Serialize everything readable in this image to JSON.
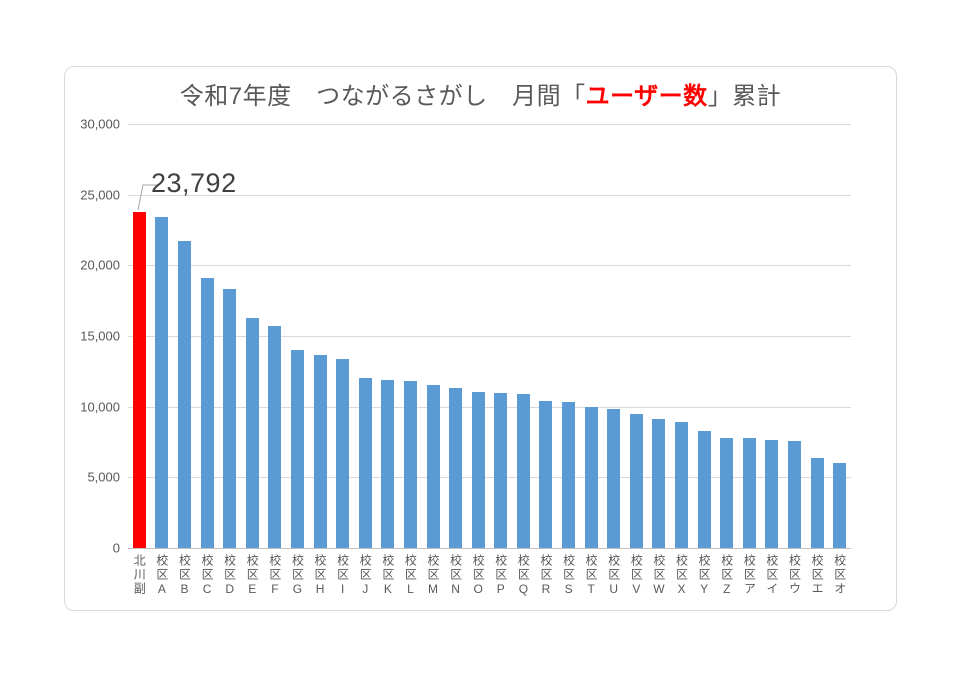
{
  "chart_data": {
    "type": "bar",
    "title_full": "令和7年度　つながるさがし　月間「ユーザー数」累計",
    "title_parts": {
      "prefix": "令和7年度　つながるさがし　月間「",
      "highlight": "ユーザー数",
      "suffix": "」累計"
    },
    "categories": [
      "北川副",
      "校区A",
      "校区B",
      "校区C",
      "校区D",
      "校区E",
      "校区F",
      "校区G",
      "校区H",
      "校区I",
      "校区J",
      "校区K",
      "校区L",
      "校区M",
      "校区N",
      "校区O",
      "校区P",
      "校区Q",
      "校区R",
      "校区S",
      "校区T",
      "校区U",
      "校区V",
      "校区W",
      "校区X",
      "校区Y",
      "校区Z",
      "校区ア",
      "校区イ",
      "校区ウ",
      "校区エ",
      "校区オ"
    ],
    "values": [
      23792,
      23400,
      21700,
      19100,
      18300,
      16300,
      15700,
      14000,
      13650,
      13350,
      12000,
      11900,
      11850,
      11550,
      11350,
      11050,
      11000,
      10900,
      10400,
      10300,
      10000,
      9850,
      9500,
      9100,
      8900,
      8300,
      7800,
      7750,
      7650,
      7600,
      6400,
      6000
    ],
    "highlight_index": 0,
    "data_label": "23,792",
    "ylim": [
      0,
      30000
    ],
    "ytick_values": [
      0,
      5000,
      10000,
      15000,
      20000,
      25000,
      30000
    ],
    "ytick_labels": [
      "0",
      "5,000",
      "10,000",
      "15,000",
      "20,000",
      "25,000",
      "30,000"
    ],
    "grid": true,
    "legend": "none",
    "colors": {
      "highlight_bar": "#ff0000",
      "default_bar": "#5b9bd5",
      "gridline": "#d9d9d9",
      "axis_line": "#bfbfbf",
      "title_text": "#595959",
      "title_highlight": "#ff0000",
      "tick_text": "#595959",
      "data_label_text": "#404040",
      "leader_line": "#a6a6a6"
    }
  }
}
